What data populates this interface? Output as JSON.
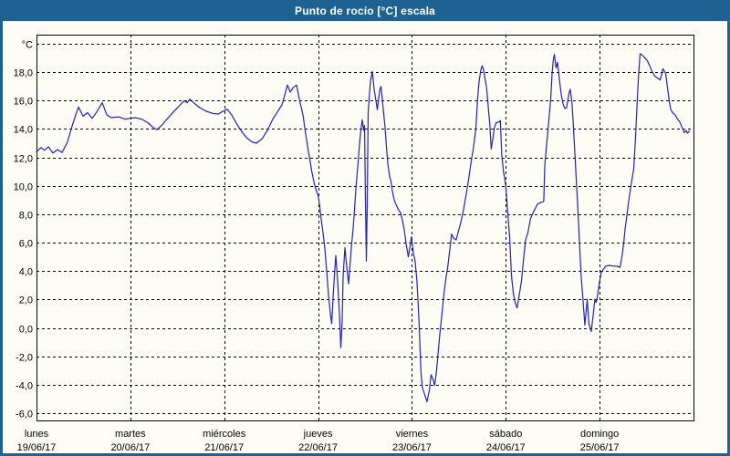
{
  "window": {
    "title": "Punto de rocío [°C] escala",
    "titlebar_color": "#1e6292",
    "border_color": "#1e6292",
    "background_color": "#fdfdf6"
  },
  "chart_data": {
    "type": "line",
    "title": "Punto de rocío [°C] escala",
    "ylabel": "°C",
    "xlabel": "",
    "ylim": [
      -6,
      20
    ],
    "xlim_days": [
      0,
      7
    ],
    "grid": {
      "visible": true,
      "style": "dashed",
      "color": "#000000"
    },
    "legend_position": "none",
    "y_axis": {
      "ticks": [
        {
          "value": 20,
          "label": "°C"
        },
        {
          "value": 18,
          "label": "18,0"
        },
        {
          "value": 16,
          "label": "16,0"
        },
        {
          "value": 14,
          "label": "14,0"
        },
        {
          "value": 12,
          "label": "12,0"
        },
        {
          "value": 10,
          "label": "10,0"
        },
        {
          "value": 8,
          "label": "8,0"
        },
        {
          "value": 6,
          "label": "6,0"
        },
        {
          "value": 4,
          "label": "4,0"
        },
        {
          "value": 2,
          "label": "2,0"
        },
        {
          "value": 0,
          "label": "0,0"
        },
        {
          "value": -2,
          "label": "-2,0"
        },
        {
          "value": -4,
          "label": "-4,0"
        },
        {
          "value": -6,
          "label": "-6,0"
        }
      ]
    },
    "x_axis": {
      "days": [
        {
          "weekday": "lunes",
          "date": "19/06/17"
        },
        {
          "weekday": "martes",
          "date": "20/06/17"
        },
        {
          "weekday": "miércoles",
          "date": "21/06/17"
        },
        {
          "weekday": "jueves",
          "date": "22/06/17"
        },
        {
          "weekday": "viernes",
          "date": "23/06/17"
        },
        {
          "weekday": "sábado",
          "date": "24/06/17"
        },
        {
          "weekday": "domingo",
          "date": "25/06/17"
        }
      ]
    },
    "series": [
      {
        "name": "Punto de rocío",
        "color": "#2121bd",
        "unit": "°C",
        "points": [
          [
            0,
            12.4
          ],
          [
            0.049,
            12.7
          ],
          [
            0.087,
            12.5
          ],
          [
            0.126,
            12.75
          ],
          [
            0.175,
            12.3
          ],
          [
            0.224,
            12.55
          ],
          [
            0.272,
            12.35
          ],
          [
            0.331,
            13.1
          ],
          [
            0.379,
            14.2
          ],
          [
            0.418,
            15.0
          ],
          [
            0.447,
            15.55
          ],
          [
            0.496,
            14.9
          ],
          [
            0.544,
            15.15
          ],
          [
            0.593,
            14.75
          ],
          [
            0.642,
            15.2
          ],
          [
            0.7,
            15.85
          ],
          [
            0.749,
            15.0
          ],
          [
            0.797,
            14.8
          ],
          [
            0.875,
            14.85
          ],
          [
            0.943,
            14.7
          ],
          [
            1.0,
            14.75
          ],
          [
            1.05,
            14.8
          ],
          [
            1.118,
            14.7
          ],
          [
            1.186,
            14.45
          ],
          [
            1.244,
            14.1
          ],
          [
            1.283,
            13.95
          ],
          [
            1.332,
            14.25
          ],
          [
            1.39,
            14.7
          ],
          [
            1.458,
            15.2
          ],
          [
            1.517,
            15.6
          ],
          [
            1.575,
            16.0
          ],
          [
            1.604,
            15.85
          ],
          [
            1.633,
            16.1
          ],
          [
            1.682,
            15.8
          ],
          [
            1.74,
            15.5
          ],
          [
            1.808,
            15.25
          ],
          [
            1.876,
            15.1
          ],
          [
            1.935,
            15.05
          ],
          [
            1.974,
            15.2
          ],
          [
            2.003,
            15.3
          ],
          [
            2.032,
            15.4
          ],
          [
            2.08,
            15.0
          ],
          [
            2.129,
            14.4
          ],
          [
            2.178,
            13.9
          ],
          [
            2.236,
            13.4
          ],
          [
            2.294,
            13.1
          ],
          [
            2.343,
            13.0
          ],
          [
            2.401,
            13.3
          ],
          [
            2.46,
            13.9
          ],
          [
            2.518,
            14.7
          ],
          [
            2.567,
            15.2
          ],
          [
            2.615,
            15.7
          ],
          [
            2.645,
            16.4
          ],
          [
            2.674,
            17.1
          ],
          [
            2.703,
            16.6
          ],
          [
            2.732,
            16.9
          ],
          [
            2.771,
            17.1
          ],
          [
            2.8,
            16.1
          ],
          [
            2.839,
            15.0
          ],
          [
            2.868,
            13.65
          ],
          [
            2.897,
            12.4
          ],
          [
            2.936,
            10.9
          ],
          [
            2.965,
            10.0
          ],
          [
            3.0,
            9.3
          ],
          [
            3.014,
            8.75
          ],
          [
            3.033,
            7.65
          ],
          [
            3.053,
            6.7
          ],
          [
            3.072,
            5.6
          ],
          [
            3.092,
            4.0
          ],
          [
            3.111,
            2.3
          ],
          [
            3.131,
            1.0
          ],
          [
            3.145,
            0.3
          ],
          [
            3.16,
            2.1
          ],
          [
            3.179,
            4.2
          ],
          [
            3.189,
            5.1
          ],
          [
            3.208,
            3.3
          ],
          [
            3.228,
            1.0
          ],
          [
            3.242,
            -1.4
          ],
          [
            3.257,
            0.5
          ],
          [
            3.267,
            3.6
          ],
          [
            3.286,
            5.65
          ],
          [
            3.306,
            4.3
          ],
          [
            3.325,
            3.1
          ],
          [
            3.354,
            5.65
          ],
          [
            3.374,
            7.0
          ],
          [
            3.388,
            8.3
          ],
          [
            3.403,
            9.8
          ],
          [
            3.422,
            11.3
          ],
          [
            3.442,
            13.0
          ],
          [
            3.456,
            13.9
          ],
          [
            3.471,
            14.65
          ],
          [
            3.485,
            13.9
          ],
          [
            3.495,
            14.25
          ],
          [
            3.505,
            9.0
          ],
          [
            3.515,
            4.7
          ],
          [
            3.524,
            9.0
          ],
          [
            3.534,
            15.2
          ],
          [
            3.558,
            17.4
          ],
          [
            3.578,
            18.05
          ],
          [
            3.597,
            16.8
          ],
          [
            3.617,
            16.0
          ],
          [
            3.631,
            15.35
          ],
          [
            3.656,
            16.7
          ],
          [
            3.67,
            17.0
          ],
          [
            3.694,
            15.4
          ],
          [
            3.714,
            14.1
          ],
          [
            3.728,
            12.75
          ],
          [
            3.743,
            11.55
          ],
          [
            3.762,
            10.7
          ],
          [
            3.777,
            10.3
          ],
          [
            3.791,
            9.65
          ],
          [
            3.811,
            9.0
          ],
          [
            3.83,
            8.7
          ],
          [
            3.859,
            8.3
          ],
          [
            3.879,
            8.1
          ],
          [
            3.898,
            7.6
          ],
          [
            3.918,
            6.9
          ],
          [
            3.937,
            6.0
          ],
          [
            3.962,
            5.0
          ],
          [
            3.976,
            5.6
          ],
          [
            3.995,
            6.4
          ],
          [
            4.015,
            5.3
          ],
          [
            4.034,
            4.7
          ],
          [
            4.053,
            3.3
          ],
          [
            4.068,
            1.5
          ],
          [
            4.078,
            0.0
          ],
          [
            4.087,
            -1.6
          ],
          [
            4.097,
            -3.2
          ],
          [
            4.112,
            -4.2
          ],
          [
            4.131,
            -4.6
          ],
          [
            4.16,
            -5.2
          ],
          [
            4.185,
            -4.4
          ],
          [
            4.204,
            -3.3
          ],
          [
            4.223,
            -3.6
          ],
          [
            4.243,
            -4.05
          ],
          [
            4.262,
            -3.0
          ],
          [
            4.277,
            -1.95
          ],
          [
            4.296,
            -0.5
          ],
          [
            4.311,
            0.4
          ],
          [
            4.33,
            1.7
          ],
          [
            4.345,
            2.6
          ],
          [
            4.364,
            3.6
          ],
          [
            4.379,
            4.15
          ],
          [
            4.403,
            5.5
          ],
          [
            4.423,
            6.6
          ],
          [
            4.447,
            6.3
          ],
          [
            4.471,
            6.2
          ],
          [
            4.495,
            6.8
          ],
          [
            4.52,
            7.4
          ],
          [
            4.549,
            8.3
          ],
          [
            4.578,
            9.4
          ],
          [
            4.607,
            10.6
          ],
          [
            4.636,
            11.9
          ],
          [
            4.656,
            12.7
          ],
          [
            4.68,
            14.0
          ],
          [
            4.699,
            16.0
          ],
          [
            4.714,
            17.3
          ],
          [
            4.733,
            18.1
          ],
          [
            4.748,
            18.45
          ],
          [
            4.762,
            18.2
          ],
          [
            4.782,
            17.4
          ],
          [
            4.796,
            16.9
          ],
          [
            4.811,
            15.75
          ],
          [
            4.83,
            14.3
          ],
          [
            4.845,
            12.6
          ],
          [
            4.864,
            13.4
          ],
          [
            4.879,
            14.1
          ],
          [
            4.898,
            14.45
          ],
          [
            4.928,
            14.5
          ],
          [
            4.942,
            14.6
          ],
          [
            4.957,
            12.15
          ],
          [
            4.976,
            11.0
          ],
          [
            5.0,
            10.0
          ],
          [
            5.021,
            8.1
          ],
          [
            5.041,
            6.4
          ],
          [
            5.06,
            3.7
          ],
          [
            5.08,
            2.45
          ],
          [
            5.099,
            1.8
          ],
          [
            5.121,
            1.4
          ],
          [
            5.143,
            2.3
          ],
          [
            5.167,
            3.3
          ],
          [
            5.192,
            5.0
          ],
          [
            5.211,
            6.2
          ],
          [
            5.235,
            6.7
          ],
          [
            5.264,
            7.7
          ],
          [
            5.298,
            8.2
          ],
          [
            5.337,
            8.7
          ],
          [
            5.376,
            8.85
          ],
          [
            5.405,
            8.9
          ],
          [
            5.415,
            11.4
          ],
          [
            5.434,
            12.8
          ],
          [
            5.454,
            14.3
          ],
          [
            5.478,
            16.1
          ],
          [
            5.493,
            17.9
          ],
          [
            5.507,
            18.9
          ],
          [
            5.517,
            19.25
          ],
          [
            5.536,
            18.3
          ],
          [
            5.551,
            18.7
          ],
          [
            5.575,
            17.3
          ],
          [
            5.59,
            16.45
          ],
          [
            5.609,
            15.8
          ],
          [
            5.628,
            15.45
          ],
          [
            5.648,
            15.5
          ],
          [
            5.672,
            16.45
          ],
          [
            5.687,
            16.8
          ],
          [
            5.706,
            15.8
          ],
          [
            5.726,
            13.5
          ],
          [
            5.745,
            11.2
          ],
          [
            5.764,
            8.8
          ],
          [
            5.784,
            6.2
          ],
          [
            5.803,
            3.6
          ],
          [
            5.823,
            2.0
          ],
          [
            5.842,
            0.2
          ],
          [
            5.867,
            2.0
          ],
          [
            5.886,
            0.3
          ],
          [
            5.91,
            -0.25
          ],
          [
            5.93,
            0.8
          ],
          [
            5.949,
            2.0
          ],
          [
            5.964,
            1.8
          ],
          [
            5.978,
            2.3
          ],
          [
            5.998,
            3.2
          ],
          [
            6.017,
            3.9
          ],
          [
            6.037,
            4.1
          ],
          [
            6.066,
            4.35
          ],
          [
            6.105,
            4.4
          ],
          [
            6.144,
            4.35
          ],
          [
            6.183,
            4.35
          ],
          [
            6.217,
            4.25
          ],
          [
            6.236,
            4.95
          ],
          [
            6.256,
            5.95
          ],
          [
            6.27,
            6.9
          ],
          [
            6.29,
            7.9
          ],
          [
            6.304,
            8.65
          ],
          [
            6.319,
            9.4
          ],
          [
            6.338,
            10.2
          ],
          [
            6.363,
            11.2
          ],
          [
            6.382,
            13.3
          ],
          [
            6.402,
            16.2
          ],
          [
            6.416,
            17.9
          ],
          [
            6.431,
            19.3
          ],
          [
            6.455,
            19.2
          ],
          [
            6.484,
            19.0
          ],
          [
            6.509,
            18.8
          ],
          [
            6.533,
            18.45
          ],
          [
            6.562,
            18.0
          ],
          [
            6.591,
            17.7
          ],
          [
            6.625,
            17.55
          ],
          [
            6.645,
            17.45
          ],
          [
            6.674,
            18.25
          ],
          [
            6.703,
            17.9
          ],
          [
            6.723,
            16.9
          ],
          [
            6.742,
            15.95
          ],
          [
            6.757,
            15.4
          ],
          [
            6.776,
            15.15
          ],
          [
            6.805,
            15.0
          ],
          [
            6.83,
            14.7
          ],
          [
            6.854,
            14.5
          ],
          [
            6.873,
            14.2
          ],
          [
            6.902,
            13.75
          ],
          [
            6.922,
            13.9
          ],
          [
            6.936,
            13.7
          ],
          [
            6.956,
            13.85
          ]
        ]
      }
    ]
  }
}
